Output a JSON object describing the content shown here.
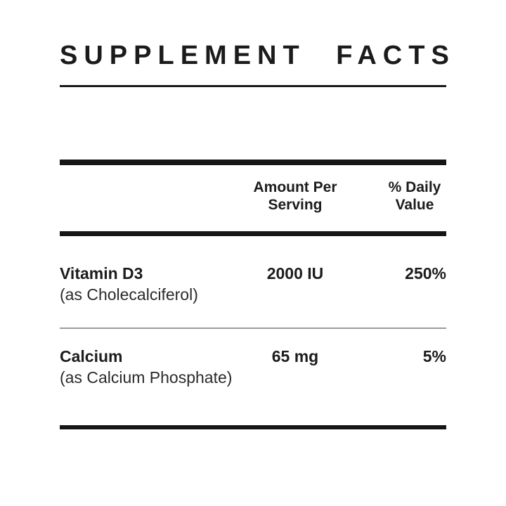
{
  "title": "SUPPLEMENT FACTS",
  "colors": {
    "text": "#1c1c1c",
    "bar": "#161616",
    "divider_gray": "#9b9b9b"
  },
  "table": {
    "headers": {
      "amount": "Amount Per\nServing",
      "daily": "% Daily\nValue"
    },
    "rows": [
      {
        "name": "Vitamin D3",
        "form": "(as Cholecalciferol)",
        "amount": "2000 IU",
        "daily": "250%"
      },
      {
        "name": "Calcium",
        "form": "(as Calcium Phosphate)",
        "amount": "65 mg",
        "daily": "5%"
      }
    ]
  }
}
